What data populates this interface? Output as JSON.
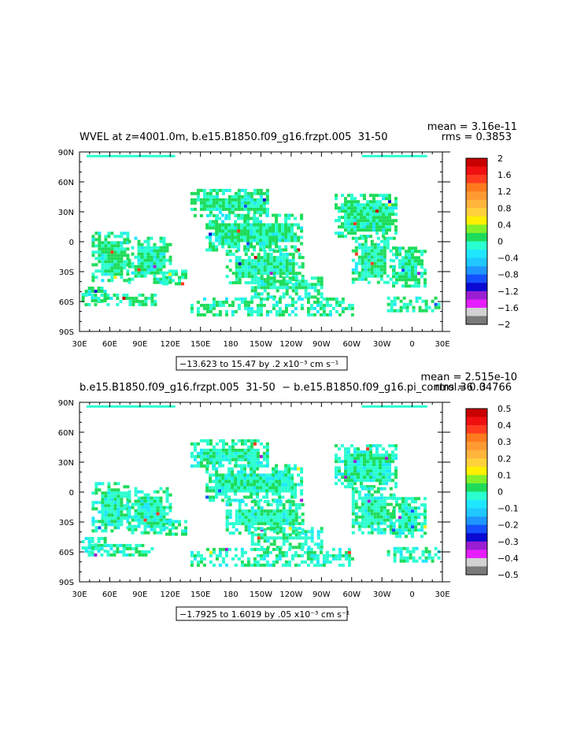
{
  "chart_data": [
    {
      "type": "heatmap",
      "title": "WVEL at z=4001.0m, b.e15.B1850.f09_g16.frzpt.005  31-50 ",
      "stats": {
        "mean": "mean = 3.16e-11",
        "rms": "rms = 0.3853"
      },
      "range_label": "−13.623 to 15.47 by .2 x10⁻³ cm s⁻¹",
      "x_ticks": [
        "30E",
        "60E",
        "90E",
        "120E",
        "150E",
        "180",
        "150W",
        "120W",
        "90W",
        "60W",
        "30W",
        "0",
        "30E"
      ],
      "y_ticks": [
        "90N",
        "60N",
        "30N",
        "0",
        "30S",
        "60S",
        "90S"
      ],
      "xlim": [
        30,
        390
      ],
      "ylim": [
        -90,
        90
      ],
      "colorbar": {
        "labels": [
          "2",
          "1.6",
          "1.2",
          "0.8",
          "0.4",
          "0",
          "−0.4",
          "−0.8",
          "−1.2",
          "−1.6",
          "−2"
        ],
        "colors": [
          "#c80000",
          "#f01010",
          "#ff3c1e",
          "#ff7a1e",
          "#ff9a32",
          "#ffb43c",
          "#ffd23c",
          "#fff000",
          "#82f02a",
          "#1edc5a",
          "#2affd0",
          "#1ee6ff",
          "#20c8ff",
          "#1e96ff",
          "#1450ff",
          "#0a0ad2",
          "#9b1ed2",
          "#e61eff",
          "#d2d2d2",
          "#7a7a7a"
        ]
      },
      "field": {
        "green": "#1edc5a",
        "cyan": "#2affd0",
        "light_cyan": "#1ee6ff",
        "extreme_pos": [
          "#ff3c1e",
          "#fff000",
          "#c80000"
        ],
        "extreme_neg": [
          "#1450ff",
          "#0a0ad2",
          "#9b1ed2"
        ]
      }
    },
    {
      "type": "heatmap",
      "title": "b.e15.B1850.f09_g16.frzpt.005  31-50  − b.e15.B1850.f09_g16.pi_control.36  3",
      "stats": {
        "mean": "mean = 2.515e-10",
        "rms": "rms = 0.04766"
      },
      "range_label": "−1.7925 to 1.6019 by .05 x10⁻³ cm s⁻¹",
      "x_ticks": [
        "30E",
        "60E",
        "90E",
        "120E",
        "150E",
        "180",
        "150W",
        "120W",
        "90W",
        "60W",
        "30W",
        "0",
        "30E"
      ],
      "y_ticks": [
        "90N",
        "60N",
        "30N",
        "0",
        "30S",
        "60S",
        "90S"
      ],
      "xlim": [
        30,
        390
      ],
      "ylim": [
        -90,
        90
      ],
      "colorbar": {
        "labels": [
          "0.5",
          "0.4",
          "0.3",
          "0.2",
          "0.1",
          "0",
          "−0.1",
          "−0.2",
          "−0.3",
          "−0.4",
          "−0.5"
        ],
        "colors": [
          "#c80000",
          "#f01010",
          "#ff3c1e",
          "#ff7a1e",
          "#ff9a32",
          "#ffb43c",
          "#ffd23c",
          "#fff000",
          "#82f02a",
          "#1edc5a",
          "#2affd0",
          "#1ee6ff",
          "#20c8ff",
          "#1e96ff",
          "#1450ff",
          "#0a0ad2",
          "#9b1ed2",
          "#e61eff",
          "#d2d2d2",
          "#7a7a7a"
        ]
      },
      "field": {
        "green": "#1edc5a",
        "cyan": "#2affd0",
        "light_cyan": "#1ee6ff",
        "extreme_pos": [
          "#fff000",
          "#ff3c1e"
        ],
        "extreme_neg": [
          "#9b1ed2",
          "#1450ff"
        ]
      }
    }
  ]
}
